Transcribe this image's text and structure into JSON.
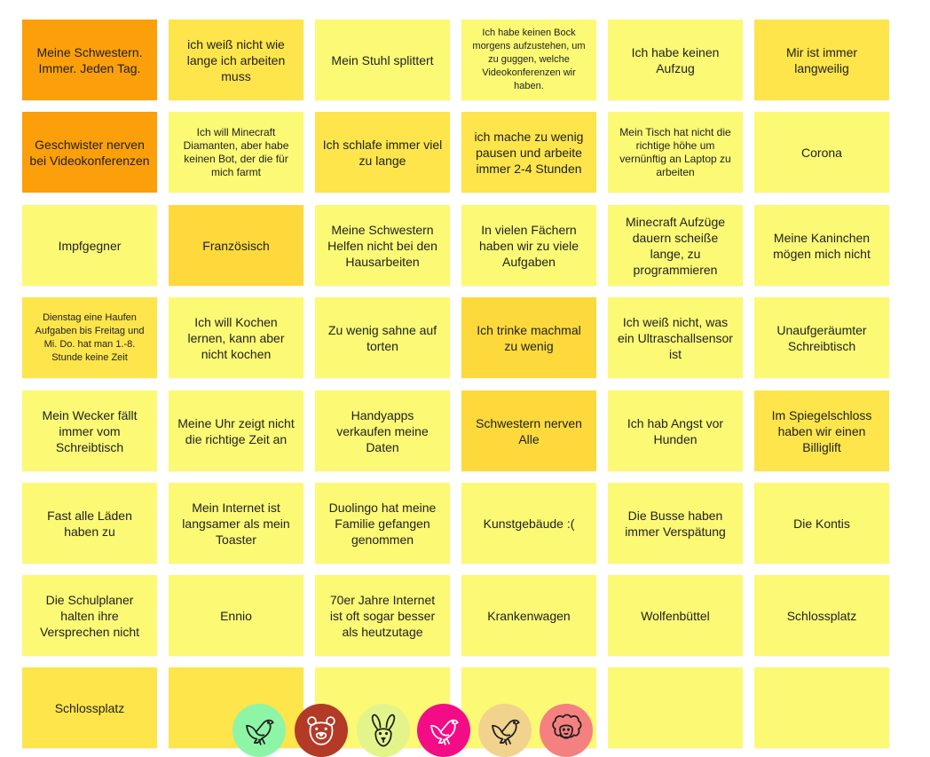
{
  "board": {
    "rows": [
      [
        {
          "text": "Meine Schwestern. Immer. Jeden Tag.",
          "color": "#fb9f0b"
        },
        {
          "text": "ich weiß nicht wie lange ich arbeiten muss",
          "color": "#fde54b"
        },
        {
          "text": "Mein Stuhl splittert",
          "color": "#fcf975"
        },
        {
          "text": "Ich habe keinen Bock morgens aufzustehen, um zu guggen, welche Videokonferenzen wir haben.",
          "color": "#fcf975"
        },
        {
          "text": "Ich habe keinen Aufzug",
          "color": "#fcf975"
        },
        {
          "text": "Mir ist immer langweilig",
          "color": "#fde54b"
        }
      ],
      [
        {
          "text": "Geschwister nerven bei Videokonferenzen",
          "color": "#fb9f0b"
        },
        {
          "text": "Ich will Minecraft Diamanten, aber habe keinen Bot, der die für mich farmt",
          "color": "#fcf975"
        },
        {
          "text": "Ich schlafe immer viel zu lange",
          "color": "#fde54b"
        },
        {
          "text": "ich mache zu wenig pausen und arbeite immer 2-4 Stunden",
          "color": "#fde54b"
        },
        {
          "text": "Mein Tisch hat nicht die richtige höhe um vernünftig an Laptop zu arbeiten",
          "color": "#fcf975"
        },
        {
          "text": "Corona",
          "color": "#fcf975"
        }
      ],
      [
        {
          "text": "Impfgegner",
          "color": "#fcf975"
        },
        {
          "text": "Französisch",
          "color": "#fdd93c"
        },
        {
          "text": "Meine Schwestern Helfen nicht bei den Hausarbeiten",
          "color": "#fcf975"
        },
        {
          "text": "In vielen Fächern haben wir zu viele Aufgaben",
          "color": "#fcf975"
        },
        {
          "text": "Minecraft Aufzüge dauern scheiße lange, zu programmieren",
          "color": "#fcf975"
        },
        {
          "text": "Meine Kaninchen mögen mich nicht",
          "color": "#fcf975"
        }
      ],
      [
        {
          "text": "Dienstag eine Haufen Aufgaben bis Freitag und Mi. Do. hat man 1.-8. Stunde keine Zeit",
          "color": "#fde54b"
        },
        {
          "text": "Ich will Kochen lernen, kann aber nicht kochen",
          "color": "#fcf975"
        },
        {
          "text": "Zu wenig sahne auf torten",
          "color": "#fcf975"
        },
        {
          "text": "Ich trinke machmal zu wenig",
          "color": "#fdd93c"
        },
        {
          "text": "Ich weiß nicht, was ein Ultraschallsensor ist",
          "color": "#fcf975"
        },
        {
          "text": "Unaufgeräumter Schreibtisch",
          "color": "#fcf975"
        }
      ],
      [
        {
          "text": "Mein Wecker fällt immer vom Schreibtisch",
          "color": "#fcf975"
        },
        {
          "text": "Meine Uhr zeigt nicht die richtige Zeit an",
          "color": "#fcf975"
        },
        {
          "text": "Handyapps verkaufen meine Daten",
          "color": "#fcf975"
        },
        {
          "text": "Schwestern nerven Alle",
          "color": "#fdd93c"
        },
        {
          "text": "Ich hab Angst vor Hunden",
          "color": "#fcf975"
        },
        {
          "text": "Im Spiegelschloss haben wir einen Billiglift",
          "color": "#fde54b"
        }
      ],
      [
        {
          "text": "Fast alle Läden haben zu",
          "color": "#fcf975"
        },
        {
          "text": "Mein Internet ist langsamer als mein Toaster",
          "color": "#fcf975"
        },
        {
          "text": "Duolingo hat meine Familie gefangen genommen",
          "color": "#fcf975"
        },
        {
          "text": "Kunstgebäude :(",
          "color": "#fcf975"
        },
        {
          "text": "Die Busse haben immer Verspätung",
          "color": "#fcf975"
        },
        {
          "text": "Die Kontis",
          "color": "#fcf975"
        }
      ],
      [
        {
          "text": "Die Schulplaner halten ihre Versprechen nicht",
          "color": "#fcf975"
        },
        {
          "text": "Ennio",
          "color": "#fcf975"
        },
        {
          "text": "70er Jahre Internet ist oft sogar besser als heutzutage",
          "color": "#fcf975"
        },
        {
          "text": "Krankenwagen",
          "color": "#fcf975"
        },
        {
          "text": "Wolfenbüttel",
          "color": "#fcf975"
        },
        {
          "text": "Schlossplatz",
          "color": "#fcf975"
        }
      ],
      [
        {
          "text": "Schlossplatz",
          "color": "#fde54b"
        },
        {
          "text": "",
          "color": "#fde54b"
        },
        {
          "text": "",
          "color": "#fcf975"
        },
        {
          "text": "",
          "color": "#fcf975"
        },
        {
          "text": "",
          "color": "#fcf975"
        },
        {
          "text": "",
          "color": "#fcf975"
        }
      ]
    ]
  },
  "avatars": [
    {
      "icon": "bird-icon",
      "bg": "#8ef5a6",
      "stroke": "#1f1f1f"
    },
    {
      "icon": "bear-icon",
      "bg": "#b33a26",
      "stroke": "#ffffff"
    },
    {
      "icon": "rabbit-icon",
      "bg": "#e3f58a",
      "stroke": "#1f1f1f"
    },
    {
      "icon": "bird-icon",
      "bg": "#f40c86",
      "stroke": "#ffffff"
    },
    {
      "icon": "bird-icon",
      "bg": "#f2d38e",
      "stroke": "#1f1f1f"
    },
    {
      "icon": "sheep-icon",
      "bg": "#f48080",
      "stroke": "#1f1f1f"
    }
  ]
}
